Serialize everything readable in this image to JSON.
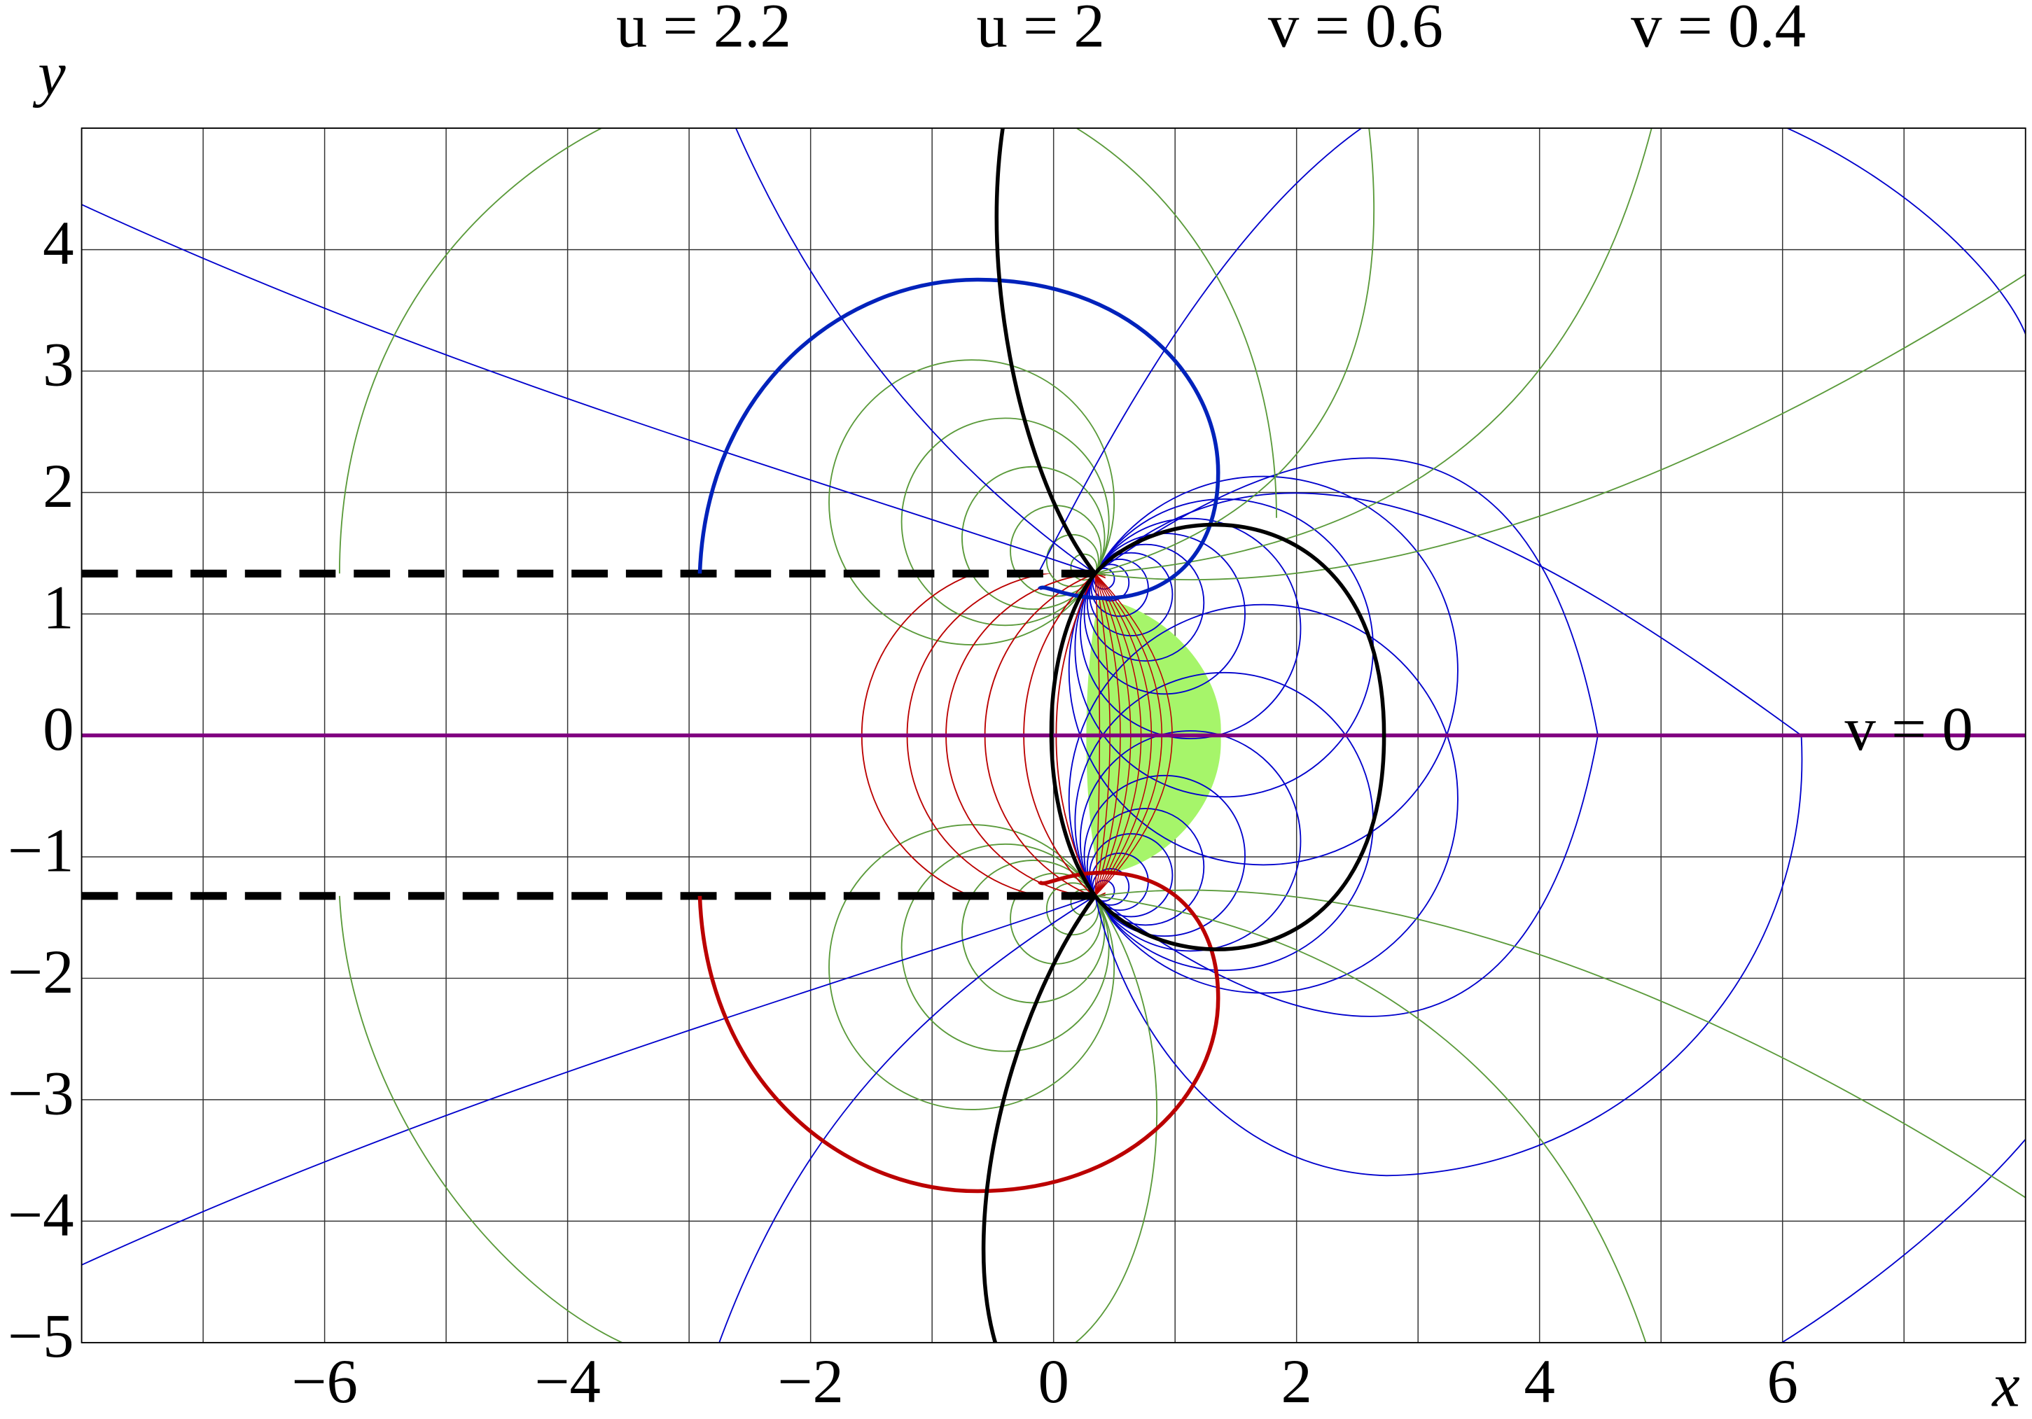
{
  "plot": {
    "xlabel": "x",
    "ylabel": "y",
    "xlim": [
      -8,
      8
    ],
    "ylim": [
      -5,
      5
    ],
    "xticks": [
      {
        "value": -6,
        "label": "−6"
      },
      {
        "value": -4,
        "label": "−4"
      },
      {
        "value": -2,
        "label": "−2"
      },
      0,
      2,
      4,
      6
    ],
    "yticks": [
      4,
      3,
      2,
      1,
      0,
      {
        "value": -1,
        "label": "−1"
      },
      {
        "value": -2,
        "label": "−2"
      },
      {
        "value": -3,
        "label": "−3"
      },
      {
        "value": -4,
        "label": "−4"
      },
      {
        "value": -5,
        "label": "−5"
      }
    ],
    "x_gridlines": [
      -8,
      -7,
      -6,
      -5,
      -4,
      -3,
      -2,
      -1,
      0,
      1,
      2,
      3,
      4,
      5,
      6,
      7,
      8
    ],
    "y_gridlines": [
      -5,
      -4,
      -3,
      -2,
      -1,
      0,
      1,
      2,
      3,
      4,
      5
    ],
    "curve_labels": [
      "u = 2.2",
      "u = 2",
      "v = 0.6",
      "v = 0.4",
      "v = 0"
    ]
  }
}
